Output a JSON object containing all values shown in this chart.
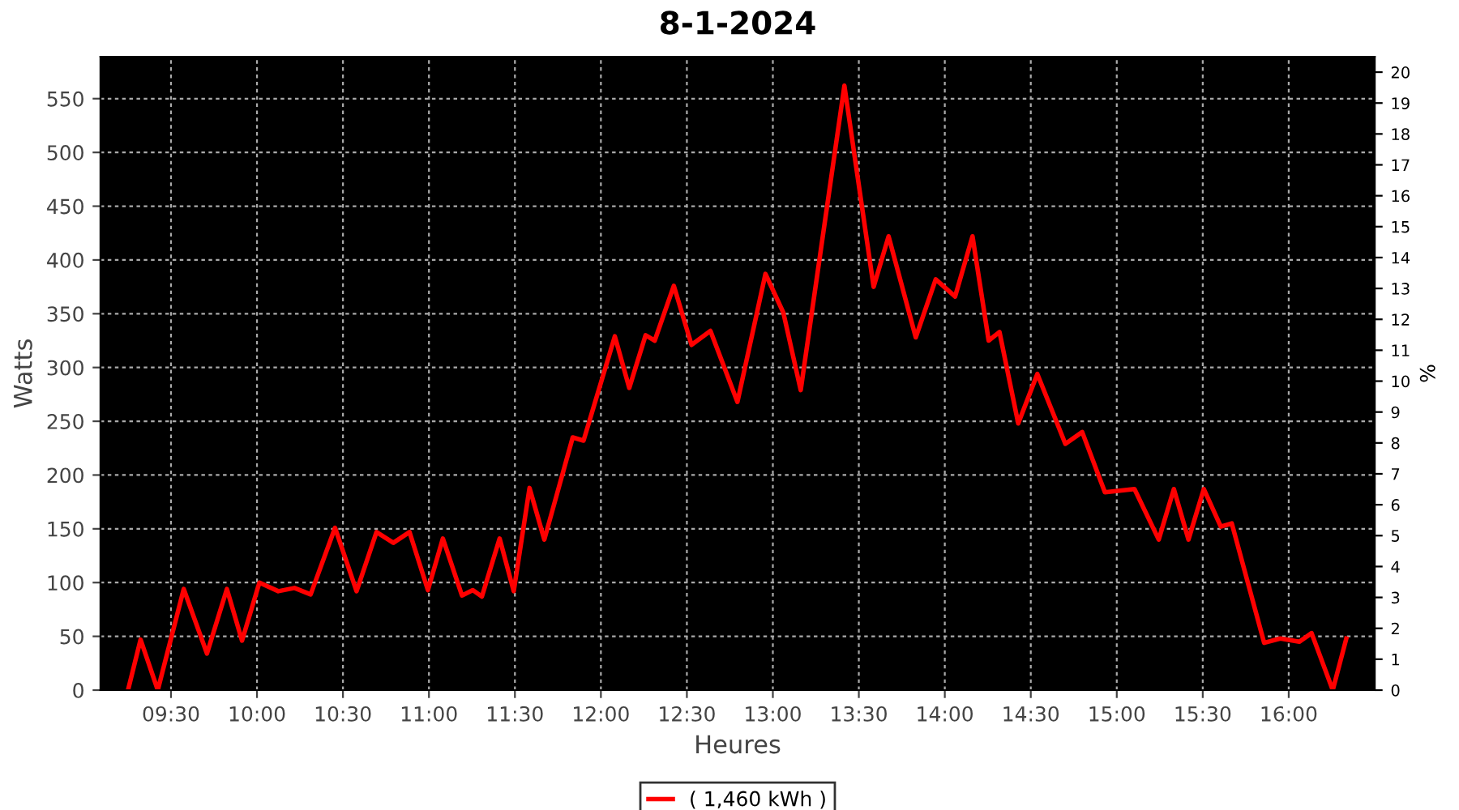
{
  "chart_data": {
    "type": "line",
    "title": "8-1-2024",
    "xlabel": "Heures",
    "ylabel": "Watts",
    "y2label": "%",
    "xlim": [
      9.09,
      16.5
    ],
    "xticks": [
      {
        "value": 9.5,
        "label": "09:30"
      },
      {
        "value": 10,
        "label": "10:00"
      },
      {
        "value": 10.5,
        "label": "10:30"
      },
      {
        "value": 11,
        "label": "11:00"
      },
      {
        "value": 11.5,
        "label": "11:30"
      },
      {
        "value": 12,
        "label": "12:00"
      },
      {
        "value": 12.5,
        "label": "12:30"
      },
      {
        "value": 13,
        "label": "13:00"
      },
      {
        "value": 13.5,
        "label": "13:30"
      },
      {
        "value": 14,
        "label": "14:00"
      },
      {
        "value": 14.5,
        "label": "14:30"
      },
      {
        "value": 15,
        "label": "15:00"
      },
      {
        "value": 15.5,
        "label": "15:30"
      },
      {
        "value": 16,
        "label": "16:00"
      }
    ],
    "ylim": [
      0,
      589
    ],
    "yticks": [
      0,
      50,
      100,
      150,
      200,
      250,
      300,
      350,
      400,
      450,
      500,
      550
    ],
    "y2lim": [
      0,
      20.5
    ],
    "y2ticks": [
      0,
      1,
      2,
      3,
      4,
      5,
      6,
      7,
      8,
      9,
      10,
      11,
      12,
      13,
      14,
      15,
      16,
      17,
      18,
      19,
      20
    ],
    "grid": true,
    "legend": "bottom",
    "marker": "none",
    "line_style": "solid",
    "series": [
      {
        "name": "( 1,460 kWh )",
        "color": "#ff0000",
        "x": [
          9.25,
          9.323,
          9.423,
          9.574,
          9.709,
          9.825,
          9.913,
          10.014,
          10.124,
          10.218,
          10.312,
          10.454,
          10.579,
          10.695,
          10.793,
          10.887,
          10.994,
          11.081,
          11.192,
          11.255,
          11.308,
          11.411,
          11.493,
          11.585,
          11.671,
          11.836,
          11.899,
          12.081,
          12.165,
          12.26,
          12.313,
          12.424,
          12.527,
          12.637,
          12.794,
          12.957,
          13.061,
          13.162,
          13.416,
          13.586,
          13.673,
          13.831,
          13.947,
          14.06,
          14.161,
          14.255,
          14.318,
          14.427,
          14.538,
          14.701,
          14.799,
          14.931,
          15.103,
          15.244,
          15.332,
          15.417,
          15.506,
          15.605,
          15.669,
          15.857,
          15.951,
          16.062,
          16.133,
          16.256,
          16.335
        ],
        "values": [
          0,
          47,
          0,
          94,
          34,
          94,
          46,
          100,
          92,
          95,
          89,
          151,
          92,
          147,
          137,
          147,
          93,
          141,
          88,
          93,
          87,
          141,
          92,
          188,
          140,
          235,
          232,
          329,
          281,
          330,
          325,
          376,
          321,
          334,
          268,
          387,
          351,
          279,
          562,
          375,
          422,
          328,
          382,
          366,
          422,
          325,
          333,
          248,
          294,
          229,
          240,
          184,
          187,
          140,
          187,
          140,
          187,
          152,
          155,
          44,
          48,
          45,
          53,
          0,
          48
        ]
      }
    ]
  }
}
